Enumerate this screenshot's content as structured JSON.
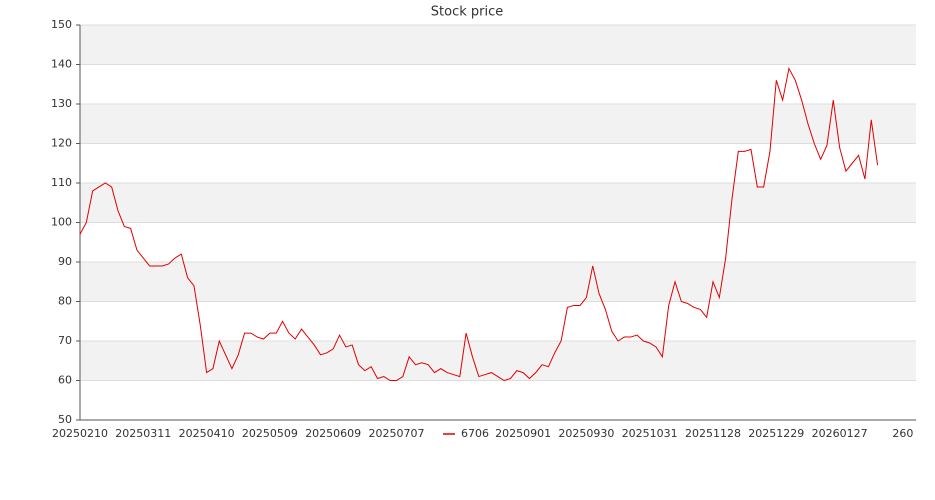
{
  "chart_data": {
    "type": "line",
    "title": "Stock price",
    "categories": [
      "20250210",
      null,
      null,
      null,
      null,
      null,
      null,
      null,
      null,
      null,
      "20250311",
      null,
      null,
      null,
      null,
      null,
      null,
      null,
      null,
      null,
      "20250410",
      null,
      null,
      null,
      null,
      null,
      null,
      null,
      null,
      null,
      "20250509",
      null,
      null,
      null,
      null,
      null,
      null,
      null,
      null,
      null,
      "20250609",
      null,
      null,
      null,
      null,
      null,
      null,
      null,
      null,
      null,
      "20250707",
      null,
      null,
      null,
      null,
      null,
      null,
      null,
      null,
      null,
      null,
      null,
      null,
      null,
      null,
      null,
      null,
      null,
      null,
      null,
      "20250901",
      null,
      null,
      null,
      null,
      null,
      null,
      null,
      null,
      null,
      "20250930",
      null,
      null,
      null,
      null,
      null,
      null,
      null,
      null,
      null,
      "20251031",
      null,
      null,
      null,
      null,
      null,
      null,
      null,
      null,
      null,
      "20251128",
      null,
      null,
      null,
      null,
      null,
      null,
      null,
      null,
      null,
      "20251229",
      null,
      null,
      null,
      null,
      null,
      null,
      null,
      null,
      null,
      "20260127",
      null,
      null,
      null,
      null,
      null,
      null,
      null,
      null,
      null,
      "260"
    ],
    "series": [
      {
        "name": "6706",
        "color": "#e00000",
        "values": [
          97,
          100,
          108,
          109,
          110,
          109,
          103,
          99,
          98.5,
          93,
          91,
          89,
          89,
          89,
          89.5,
          91,
          92,
          86,
          84,
          74,
          62,
          63,
          70,
          66.5,
          63,
          66.5,
          72,
          72,
          71,
          70.5,
          72,
          72,
          75,
          72,
          70.5,
          73,
          71,
          69,
          66.5,
          67,
          68,
          71.5,
          68.5,
          69,
          64,
          62.5,
          63.5,
          60.5,
          61,
          60,
          60,
          61,
          66,
          64,
          64.5,
          64,
          62,
          63,
          62,
          61.5,
          61,
          72,
          66,
          61,
          61.5,
          62,
          61,
          60,
          60.5,
          62.5,
          62,
          60.5,
          62,
          64,
          63.5,
          67,
          70,
          78.5,
          79,
          79,
          81,
          89,
          82,
          78,
          72.5,
          70,
          71,
          71,
          71.5,
          70,
          69.5,
          68.5,
          66,
          79,
          85,
          80,
          79.5,
          78.5,
          78,
          76,
          85,
          81,
          91,
          106,
          118,
          118,
          118.5,
          109,
          109,
          118,
          136,
          131,
          139,
          136,
          131,
          125,
          120,
          116,
          119.5,
          131,
          119,
          113,
          115,
          117,
          111,
          126,
          114.5,
          null,
          null,
          null,
          null
        ]
      }
    ],
    "ylim": [
      50,
      150
    ],
    "yticks": [
      50,
      60,
      70,
      80,
      90,
      100,
      110,
      120,
      130,
      140,
      150
    ],
    "grid": true,
    "legend": "lower center"
  }
}
